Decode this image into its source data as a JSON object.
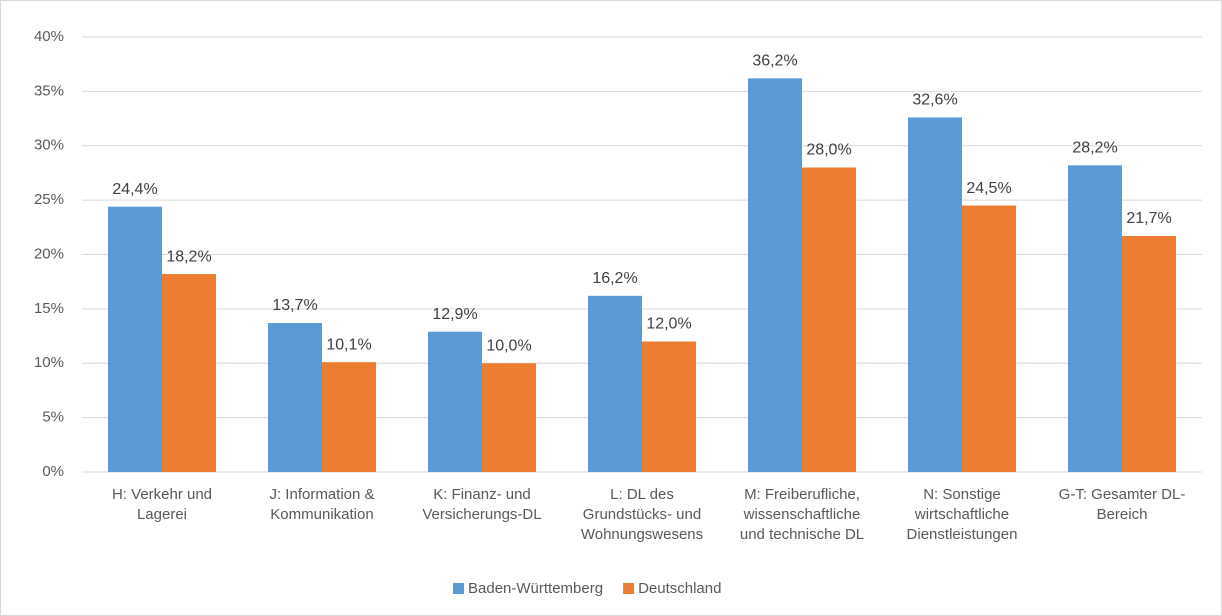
{
  "chart_data": {
    "type": "bar",
    "categories": [
      "H: Verkehr und\nLagerei",
      "J: Information &\nKommunikation",
      "K: Finanz- und\nVersicherungs-DL",
      "L: DL des\nGrundstücks- und\nWohnungswesens",
      "M: Freiberufliche,\nwissenschaftliche\nund technische DL",
      "N: Sonstige\nwirtschaftliche\nDienstleistungen",
      "G-T: Gesamter DL-\nBereich"
    ],
    "series": [
      {
        "name": "Baden-Württemberg",
        "color": "#5b9bd5",
        "values": [
          24.4,
          13.7,
          12.9,
          16.2,
          36.2,
          32.6,
          28.2
        ],
        "value_labels": [
          "24,4%",
          "13,7%",
          "12,9%",
          "16,2%",
          "36,2%",
          "32,6%",
          "28,2%"
        ]
      },
      {
        "name": "Deutschland",
        "color": "#ed7d31",
        "values": [
          18.2,
          10.1,
          10.0,
          12.0,
          28.0,
          24.5,
          21.7
        ],
        "value_labels": [
          "18,2%",
          "10,1%",
          "10,0%",
          "12,0%",
          "28,0%",
          "24,5%",
          "21,7%"
        ]
      }
    ],
    "ylim": [
      0,
      40
    ],
    "yticks": [
      {
        "value": 0,
        "label": "0%"
      },
      {
        "value": 5,
        "label": "5%"
      },
      {
        "value": 10,
        "label": "10%"
      },
      {
        "value": 15,
        "label": "15%"
      },
      {
        "value": 20,
        "label": "20%"
      },
      {
        "value": 25,
        "label": "25%"
      },
      {
        "value": 30,
        "label": "30%"
      },
      {
        "value": 35,
        "label": "35%"
      },
      {
        "value": 40,
        "label": "40%"
      }
    ],
    "grid": true,
    "legend": "bottom"
  }
}
